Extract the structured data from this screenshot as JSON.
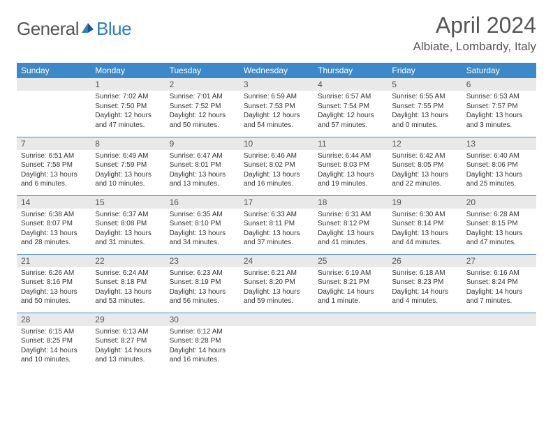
{
  "brand": {
    "part1": "General",
    "part2": "Blue"
  },
  "header": {
    "month_title": "April 2024",
    "location": "Albiate, Lombardy, Italy"
  },
  "weekdays": [
    "Sunday",
    "Monday",
    "Tuesday",
    "Wednesday",
    "Thursday",
    "Friday",
    "Saturday"
  ],
  "colors": {
    "header_bg": "#3b89c9",
    "daynum_bg": "#e9e9e9",
    "border": "#3b89c9"
  },
  "days": {
    "1": {
      "sunrise": "Sunrise: 7:02 AM",
      "sunset": "Sunset: 7:50 PM",
      "daylight": "Daylight: 12 hours and 47 minutes."
    },
    "2": {
      "sunrise": "Sunrise: 7:01 AM",
      "sunset": "Sunset: 7:52 PM",
      "daylight": "Daylight: 12 hours and 50 minutes."
    },
    "3": {
      "sunrise": "Sunrise: 6:59 AM",
      "sunset": "Sunset: 7:53 PM",
      "daylight": "Daylight: 12 hours and 54 minutes."
    },
    "4": {
      "sunrise": "Sunrise: 6:57 AM",
      "sunset": "Sunset: 7:54 PM",
      "daylight": "Daylight: 12 hours and 57 minutes."
    },
    "5": {
      "sunrise": "Sunrise: 6:55 AM",
      "sunset": "Sunset: 7:55 PM",
      "daylight": "Daylight: 13 hours and 0 minutes."
    },
    "6": {
      "sunrise": "Sunrise: 6:53 AM",
      "sunset": "Sunset: 7:57 PM",
      "daylight": "Daylight: 13 hours and 3 minutes."
    },
    "7": {
      "sunrise": "Sunrise: 6:51 AM",
      "sunset": "Sunset: 7:58 PM",
      "daylight": "Daylight: 13 hours and 6 minutes."
    },
    "8": {
      "sunrise": "Sunrise: 6:49 AM",
      "sunset": "Sunset: 7:59 PM",
      "daylight": "Daylight: 13 hours and 10 minutes."
    },
    "9": {
      "sunrise": "Sunrise: 6:47 AM",
      "sunset": "Sunset: 8:01 PM",
      "daylight": "Daylight: 13 hours and 13 minutes."
    },
    "10": {
      "sunrise": "Sunrise: 6:46 AM",
      "sunset": "Sunset: 8:02 PM",
      "daylight": "Daylight: 13 hours and 16 minutes."
    },
    "11": {
      "sunrise": "Sunrise: 6:44 AM",
      "sunset": "Sunset: 8:03 PM",
      "daylight": "Daylight: 13 hours and 19 minutes."
    },
    "12": {
      "sunrise": "Sunrise: 6:42 AM",
      "sunset": "Sunset: 8:05 PM",
      "daylight": "Daylight: 13 hours and 22 minutes."
    },
    "13": {
      "sunrise": "Sunrise: 6:40 AM",
      "sunset": "Sunset: 8:06 PM",
      "daylight": "Daylight: 13 hours and 25 minutes."
    },
    "14": {
      "sunrise": "Sunrise: 6:38 AM",
      "sunset": "Sunset: 8:07 PM",
      "daylight": "Daylight: 13 hours and 28 minutes."
    },
    "15": {
      "sunrise": "Sunrise: 6:37 AM",
      "sunset": "Sunset: 8:08 PM",
      "daylight": "Daylight: 13 hours and 31 minutes."
    },
    "16": {
      "sunrise": "Sunrise: 6:35 AM",
      "sunset": "Sunset: 8:10 PM",
      "daylight": "Daylight: 13 hours and 34 minutes."
    },
    "17": {
      "sunrise": "Sunrise: 6:33 AM",
      "sunset": "Sunset: 8:11 PM",
      "daylight": "Daylight: 13 hours and 37 minutes."
    },
    "18": {
      "sunrise": "Sunrise: 6:31 AM",
      "sunset": "Sunset: 8:12 PM",
      "daylight": "Daylight: 13 hours and 41 minutes."
    },
    "19": {
      "sunrise": "Sunrise: 6:30 AM",
      "sunset": "Sunset: 8:14 PM",
      "daylight": "Daylight: 13 hours and 44 minutes."
    },
    "20": {
      "sunrise": "Sunrise: 6:28 AM",
      "sunset": "Sunset: 8:15 PM",
      "daylight": "Daylight: 13 hours and 47 minutes."
    },
    "21": {
      "sunrise": "Sunrise: 6:26 AM",
      "sunset": "Sunset: 8:16 PM",
      "daylight": "Daylight: 13 hours and 50 minutes."
    },
    "22": {
      "sunrise": "Sunrise: 6:24 AM",
      "sunset": "Sunset: 8:18 PM",
      "daylight": "Daylight: 13 hours and 53 minutes."
    },
    "23": {
      "sunrise": "Sunrise: 6:23 AM",
      "sunset": "Sunset: 8:19 PM",
      "daylight": "Daylight: 13 hours and 56 minutes."
    },
    "24": {
      "sunrise": "Sunrise: 6:21 AM",
      "sunset": "Sunset: 8:20 PM",
      "daylight": "Daylight: 13 hours and 59 minutes."
    },
    "25": {
      "sunrise": "Sunrise: 6:19 AM",
      "sunset": "Sunset: 8:21 PM",
      "daylight": "Daylight: 14 hours and 1 minute."
    },
    "26": {
      "sunrise": "Sunrise: 6:18 AM",
      "sunset": "Sunset: 8:23 PM",
      "daylight": "Daylight: 14 hours and 4 minutes."
    },
    "27": {
      "sunrise": "Sunrise: 6:16 AM",
      "sunset": "Sunset: 8:24 PM",
      "daylight": "Daylight: 14 hours and 7 minutes."
    },
    "28": {
      "sunrise": "Sunrise: 6:15 AM",
      "sunset": "Sunset: 8:25 PM",
      "daylight": "Daylight: 14 hours and 10 minutes."
    },
    "29": {
      "sunrise": "Sunrise: 6:13 AM",
      "sunset": "Sunset: 8:27 PM",
      "daylight": "Daylight: 14 hours and 13 minutes."
    },
    "30": {
      "sunrise": "Sunrise: 6:12 AM",
      "sunset": "Sunset: 8:28 PM",
      "daylight": "Daylight: 14 hours and 16 minutes."
    }
  },
  "layout": {
    "start_weekday": 1,
    "num_days": 30
  }
}
